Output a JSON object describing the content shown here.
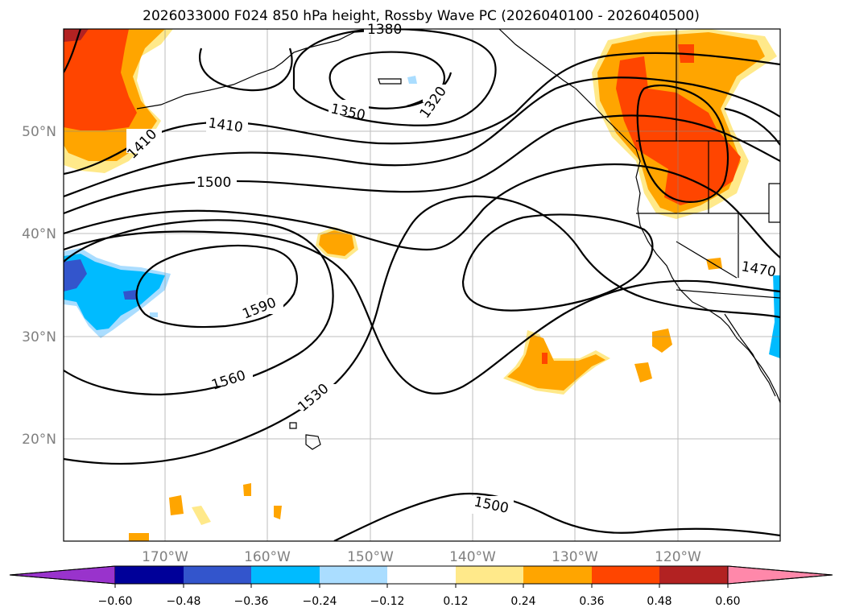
{
  "chart_data": {
    "type": "heatmap",
    "title": "2026033000 F024 850 hPa height, Rossby Wave PC (2026040100 - 2026040500)",
    "x_ticks": [
      "170°W",
      "160°W",
      "150°W",
      "140°W",
      "130°W",
      "120°W"
    ],
    "y_ticks": [
      "50°N",
      "40°N",
      "30°N",
      "20°N"
    ],
    "x_grid_lon": [
      -170,
      -160,
      -150,
      -140,
      -130,
      -120
    ],
    "y_grid_lat": [
      50,
      40,
      30,
      20
    ],
    "lon_range": [
      -180,
      -110
    ],
    "lat_range": [
      10,
      60
    ],
    "contour_labels": [
      "1380",
      "1350",
      "1320",
      "1410",
      "1410",
      "1500",
      "1590",
      "1560",
      "1530",
      "1500",
      "1470"
    ],
    "colorbar": {
      "boundaries": [
        -0.6,
        -0.48,
        -0.36,
        -0.24,
        -0.12,
        0.12,
        0.24,
        0.36,
        0.48,
        0.6
      ],
      "tick_labels": [
        "−0.60",
        "−0.48",
        "−0.36",
        "−0.24",
        "−0.12",
        "0.12",
        "0.24",
        "0.36",
        "0.48",
        "0.60"
      ],
      "colors": [
        "#9933cc",
        "#000099",
        "#3355cc",
        "#00bbff",
        "#aaddff",
        "#ffffff",
        "#ffe98a",
        "#ffa500",
        "#ff4500",
        "#b22222",
        "#ff88aa"
      ]
    }
  }
}
